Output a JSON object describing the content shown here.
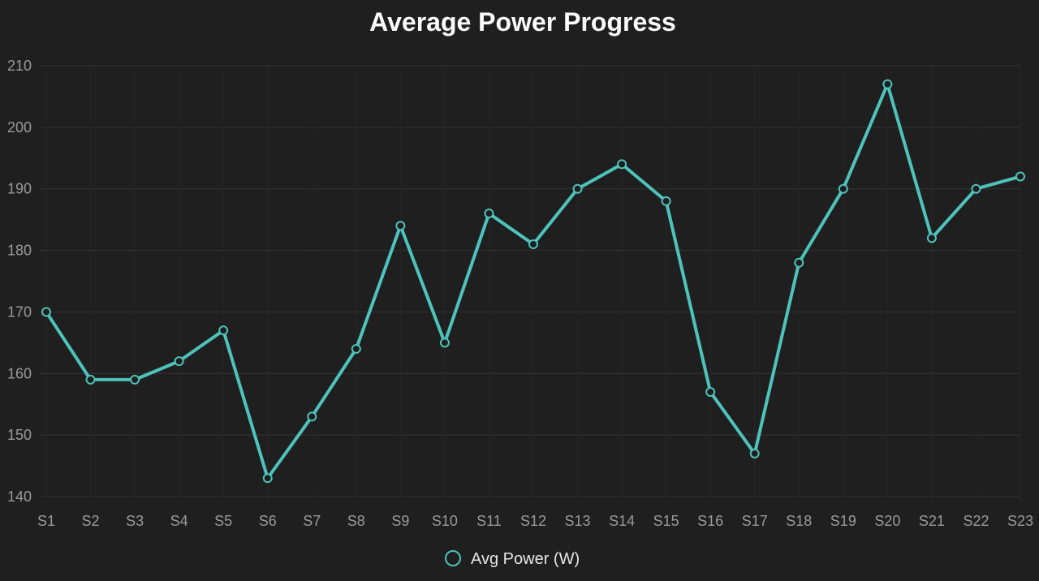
{
  "chart_data": {
    "type": "line",
    "title": "Average Power Progress",
    "xlabel": "",
    "ylabel": "",
    "categories": [
      "S1",
      "S2",
      "S3",
      "S4",
      "S5",
      "S6",
      "S7",
      "S8",
      "S9",
      "S10",
      "S11",
      "S12",
      "S13",
      "S14",
      "S15",
      "S16",
      "S17",
      "S18",
      "S19",
      "S20",
      "S21",
      "S22",
      "S23"
    ],
    "series": [
      {
        "name": "Avg Power (W)",
        "values": [
          170,
          159,
          159,
          162,
          167,
          143,
          153,
          164,
          184,
          165,
          186,
          181,
          190,
          194,
          188,
          157,
          147,
          178,
          190,
          207,
          182,
          190,
          192
        ]
      }
    ],
    "ylim": [
      140,
      210
    ],
    "yticks": [
      140,
      150,
      160,
      170,
      180,
      190,
      200,
      210
    ],
    "grid": true,
    "legend_position": "bottom-center",
    "colors": {
      "background": "#1f1f1f",
      "line": "#4ec3bb",
      "grid": "#333333",
      "text": "#9a9a9a",
      "title": "#ffffff"
    }
  }
}
